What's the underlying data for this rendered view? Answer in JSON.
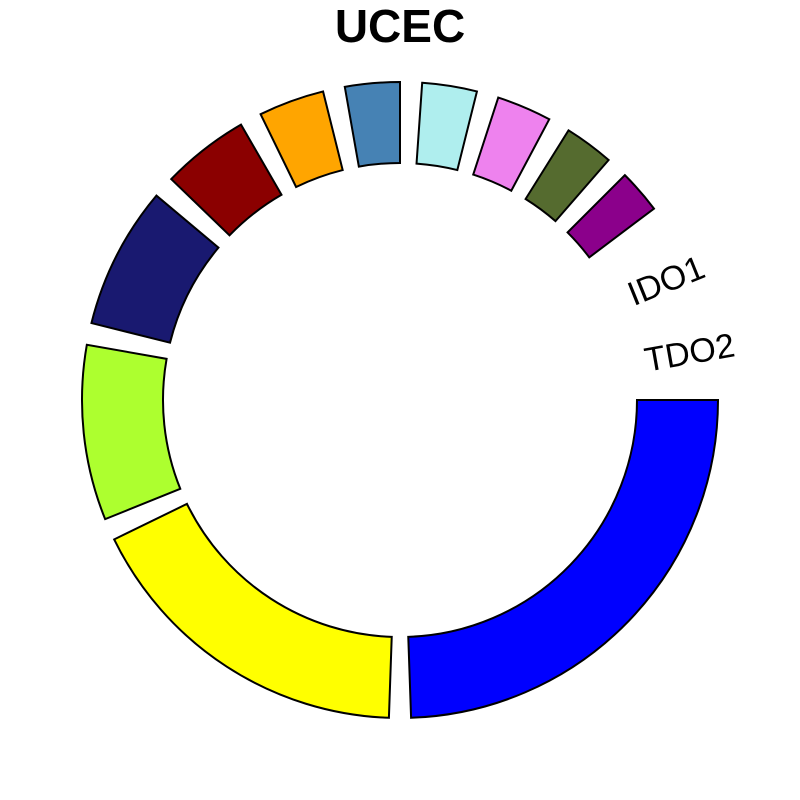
{
  "chart_data": {
    "type": "donut",
    "title": "UCEC",
    "categories": [
      "TDO2",
      null,
      null,
      null,
      null,
      null,
      null,
      null,
      null,
      null,
      "IDO1"
    ],
    "values": [
      88,
      62,
      32,
      26,
      16,
      12,
      10,
      10,
      10,
      9,
      8
    ],
    "colors": [
      "#0000ff",
      "#ffff00",
      "#adff2f",
      "#191970",
      "#8b0000",
      "#ffa500",
      "#4682b4",
      "#afeeee",
      "#ee82ee",
      "#556b2f",
      "#8b008b"
    ]
  }
}
